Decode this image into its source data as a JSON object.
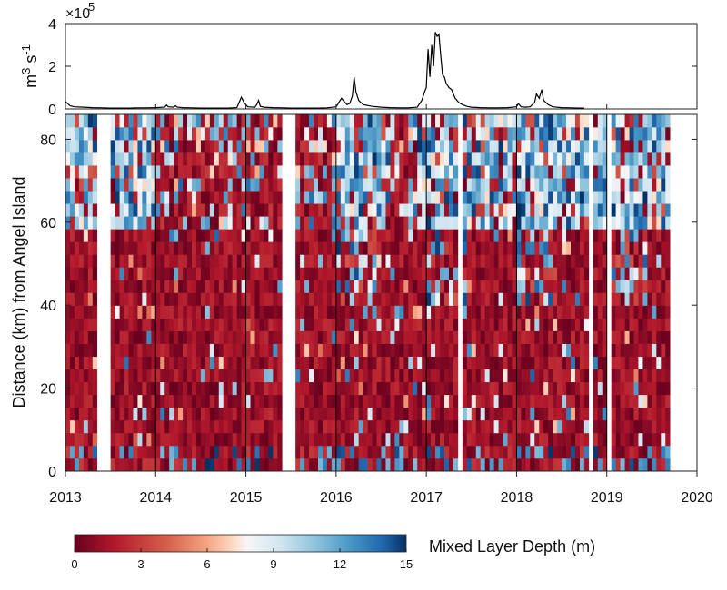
{
  "chart_data": [
    {
      "type": "line",
      "ylabel": "m^3 s^-1",
      "ylabel_base": "m",
      "ylabel_exp1": "3",
      "ylabel_mid": " s",
      "ylabel_exp2": "-1",
      "multiplier": "×10",
      "multiplier_exp": "5",
      "ylim": [
        0,
        4
      ],
      "yticks": [
        "0",
        "2",
        "4"
      ],
      "xlim": [
        2013,
        2020
      ],
      "x": [
        2013.0,
        2013.05,
        2013.1,
        2013.2,
        2013.3,
        2013.4,
        2013.5,
        2013.6,
        2013.7,
        2013.8,
        2013.9,
        2014.0,
        2014.1,
        2014.12,
        2014.14,
        2014.2,
        2014.22,
        2014.24,
        2014.3,
        2014.4,
        2014.5,
        2014.6,
        2014.7,
        2014.8,
        2014.9,
        2014.92,
        2014.95,
        2014.98,
        2015.02,
        2015.1,
        2015.12,
        2015.14,
        2015.16,
        2015.2,
        2015.3,
        2015.4,
        2015.5,
        2015.6,
        2015.7,
        2015.8,
        2015.9,
        2016.0,
        2016.03,
        2016.06,
        2016.09,
        2016.12,
        2016.15,
        2016.18,
        2016.2,
        2016.22,
        2016.25,
        2016.3,
        2016.4,
        2016.5,
        2016.6,
        2016.7,
        2016.8,
        2016.9,
        2016.95,
        2016.98,
        2017.0,
        2017.02,
        2017.04,
        2017.06,
        2017.08,
        2017.1,
        2017.12,
        2017.14,
        2017.16,
        2017.18,
        2017.2,
        2017.22,
        2017.25,
        2017.28,
        2017.32,
        2017.36,
        2017.4,
        2017.45,
        2017.5,
        2017.6,
        2017.7,
        2017.8,
        2017.9,
        2018.0,
        2018.02,
        2018.05,
        2018.1,
        2018.15,
        2018.2,
        2018.22,
        2018.25,
        2018.28,
        2018.3,
        2018.35,
        2018.4,
        2018.5,
        2018.6,
        2018.7,
        2018.75
      ],
      "values": [
        0.35,
        0.15,
        0.1,
        0.08,
        0.06,
        0.05,
        0.04,
        0.04,
        0.04,
        0.05,
        0.05,
        0.06,
        0.08,
        0.18,
        0.1,
        0.08,
        0.15,
        0.08,
        0.06,
        0.05,
        0.04,
        0.04,
        0.04,
        0.04,
        0.06,
        0.25,
        0.55,
        0.3,
        0.1,
        0.08,
        0.2,
        0.4,
        0.12,
        0.08,
        0.06,
        0.05,
        0.04,
        0.04,
        0.04,
        0.04,
        0.05,
        0.1,
        0.3,
        0.5,
        0.35,
        0.2,
        0.25,
        0.6,
        1.5,
        0.8,
        0.4,
        0.2,
        0.12,
        0.08,
        0.06,
        0.05,
        0.05,
        0.08,
        0.4,
        0.8,
        1.0,
        2.8,
        1.5,
        3.0,
        2.0,
        3.6,
        3.4,
        3.5,
        2.5,
        1.6,
        1.5,
        1.2,
        1.0,
        0.9,
        0.5,
        0.3,
        0.2,
        0.12,
        0.08,
        0.06,
        0.05,
        0.05,
        0.06,
        0.1,
        0.25,
        0.1,
        0.08,
        0.1,
        0.3,
        0.7,
        0.5,
        0.9,
        0.4,
        0.2,
        0.1,
        0.06,
        0.05,
        0.04,
        0.04
      ]
    },
    {
      "type": "heatmap",
      "ylabel": "Distance (km) from Angel Island",
      "xlim": [
        2013,
        2020
      ],
      "xticks": [
        "2013",
        "2014",
        "2015",
        "2016",
        "2017",
        "2018",
        "2019",
        "2020"
      ],
      "ylim": [
        0,
        86
      ],
      "yticks": [
        "0",
        "20",
        "40",
        "60",
        "80"
      ],
      "colorbar": {
        "label": "Mixed Layer Depth (m)",
        "range": [
          0,
          15
        ],
        "ticks": [
          "0",
          "3",
          "6",
          "9",
          "12",
          "15"
        ]
      }
    }
  ]
}
